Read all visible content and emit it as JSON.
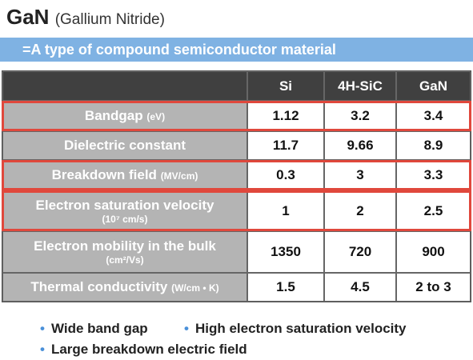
{
  "header": {
    "title": "GaN",
    "subtitle": "(Gallium Nitride)"
  },
  "banner": "=A type of compound semiconductor material",
  "table": {
    "columns": [
      "Si",
      "4H-SiC",
      "GaN"
    ],
    "highlight_color": "#e0483c",
    "rows": [
      {
        "label": "Bandgap",
        "unit": "(eV)",
        "unit_inline": true,
        "values": [
          "1.12",
          "3.2",
          "3.4"
        ],
        "highlight": true
      },
      {
        "label": "Dielectric constant",
        "values": [
          "11.7",
          "9.66",
          "8.9"
        ],
        "highlight": false
      },
      {
        "label": "Breakdown field",
        "unit": "(MV/cm)",
        "unit_inline": true,
        "values": [
          "0.3",
          "3",
          "3.3"
        ],
        "highlight": true
      },
      {
        "label": "Electron saturation velocity",
        "unit": "(10⁷ cm/s)",
        "unit_inline": false,
        "values": [
          "1",
          "2",
          "2.5"
        ],
        "highlight": true
      },
      {
        "label": "Electron mobility in the bulk",
        "unit": "(cm²/Vs)",
        "unit_inline": false,
        "values": [
          "1350",
          "720",
          "900"
        ],
        "highlight": false
      },
      {
        "label": "Thermal conductivity",
        "unit": "(W/cm • K)",
        "unit_inline": true,
        "values": [
          "1.5",
          "4.5",
          "2 to 3"
        ],
        "highlight": false
      }
    ]
  },
  "bullets": [
    "Wide band gap",
    "High electron saturation velocity",
    "Large breakdown electric field"
  ]
}
